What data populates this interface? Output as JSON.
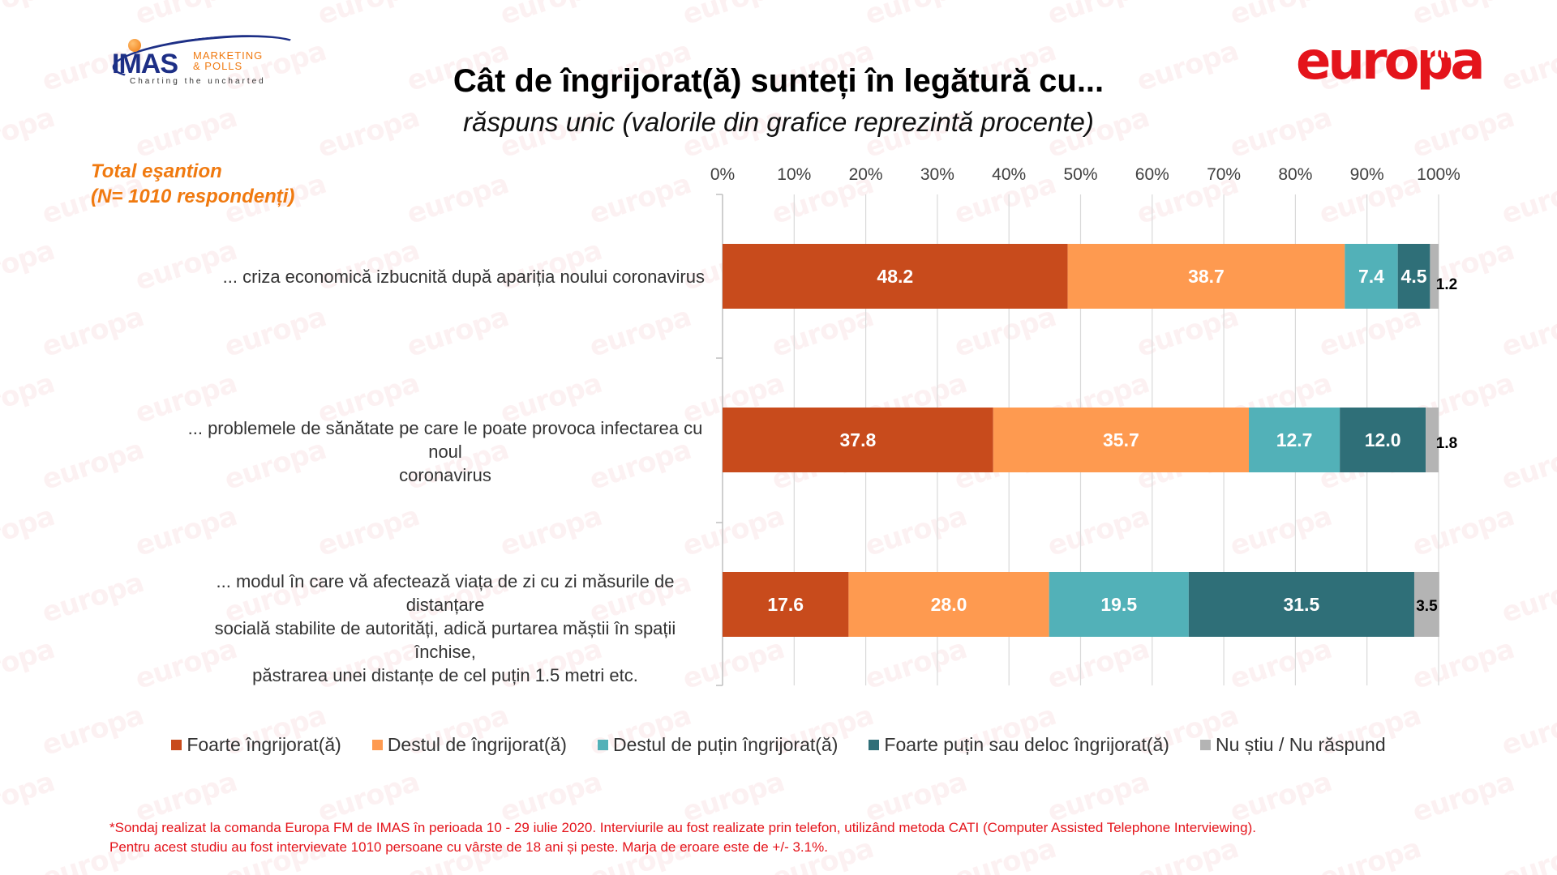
{
  "logos": {
    "imas": {
      "main": "IMAS",
      "sub_line1": "MARKETING",
      "sub_line2": "& POLLS",
      "tagline": "Charting the uncharted"
    },
    "europa": {
      "word": "europa",
      "suffix": "fm"
    }
  },
  "watermark_text": "europa",
  "header": {
    "title": "Cât de îngrijorat(ă) sunteți în legătură cu...",
    "subtitle": "răspuns unic (valorile din grafice reprezintă procente)"
  },
  "sample": {
    "line1": "Total eşantion",
    "line2": "(N= 1010 respondenți)"
  },
  "chart_data": {
    "type": "bar",
    "orientation": "horizontal",
    "stacked": true,
    "title": "Cât de îngrijorat(ă) sunteți în legătură cu...",
    "subtitle": "răspuns unic (valorile din grafice reprezintă procente)",
    "xlabel": "",
    "ylabel": "",
    "xlim": [
      0,
      100
    ],
    "x_ticks": [
      "0%",
      "10%",
      "20%",
      "30%",
      "40%",
      "50%",
      "60%",
      "70%",
      "80%",
      "90%",
      "100%"
    ],
    "x_axis_position": "top",
    "grid": true,
    "legend_position": "bottom",
    "categories": [
      "... criza economică izbucnită după apariția noului coronavirus",
      "... problemele de sănătate pe care le poate provoca infectarea cu noul coronavirus",
      "... modul în care vă afectează viața de zi cu zi măsurile de distanțare socială stabilite de autorități, adică purtarea măștii în spații închise, păstrarea unei distanțe de cel puțin 1.5 metri etc."
    ],
    "category_lines": [
      [
        "... criza economică izbucnită după apariția noului coronavirus"
      ],
      [
        "... problemele de sănătate pe care le poate provoca infectarea cu noul",
        "coronavirus"
      ],
      [
        "... modul în care vă afectează viața de zi cu zi măsurile de distanțare",
        "socială stabilite de autorități, adică purtarea măștii în spații închise,",
        "păstrarea unei distanțe de cel puțin 1.5 metri etc."
      ]
    ],
    "series": [
      {
        "name": "Foarte îngrijorat(ă)",
        "color": "#c84b1c",
        "label_color": "#ffffff",
        "values": [
          48.2,
          37.8,
          17.6
        ]
      },
      {
        "name": "Destul de îngrijorat(ă)",
        "color": "#fe9a50",
        "label_color": "#ffffff",
        "values": [
          38.7,
          35.7,
          28.0
        ]
      },
      {
        "name": "Destul de puțin îngrijorat(ă)",
        "color": "#52b1b8",
        "label_color": "#ffffff",
        "values": [
          7.4,
          12.7,
          19.5
        ]
      },
      {
        "name": "Foarte puțin sau deloc îngrijorat(ă)",
        "color": "#2f6f78",
        "label_color": "#ffffff",
        "values": [
          4.5,
          12.0,
          31.5
        ]
      },
      {
        "name": "Nu știu / Nu răspund",
        "color": "#b4b4b4",
        "label_color": "#000000",
        "values": [
          1.2,
          1.8,
          3.5
        ]
      }
    ]
  },
  "footnote": {
    "line1": "*Sondaj realizat la comanda Europa FM de IMAS în perioada  10 - 29 iulie 2020. Interviurile au fost realizate prin telefon, utilizând metoda CATI (Computer Assisted Telephone Interviewing).",
    "line2": "Pentru acest studiu au fost intervievate 1010 persoane cu vârste de 18 ani și peste. Marja de eroare este de +/- 3.1%."
  }
}
